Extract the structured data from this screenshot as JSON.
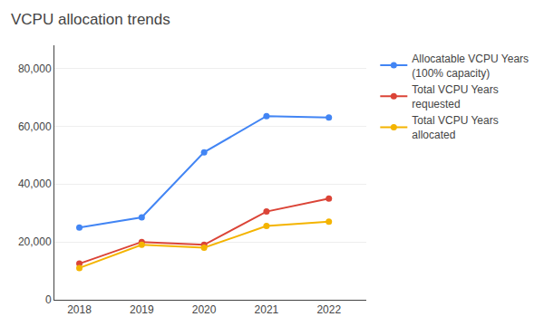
{
  "chart_data": {
    "type": "line",
    "title": "VCPU allocation trends",
    "x": [
      2018,
      2019,
      2020,
      2021,
      2022
    ],
    "series": [
      {
        "name": "Allocatable VCPU Years\n(100% capacity)",
        "color": "#4285F4",
        "values": [
          25000,
          28500,
          51000,
          63500,
          63000
        ]
      },
      {
        "name": "Total VCPU Years\nrequested",
        "color": "#DB4437",
        "values": [
          12500,
          20000,
          19000,
          30500,
          35000
        ]
      },
      {
        "name": "Total VCPU Years\nallocated",
        "color": "#F4B400",
        "values": [
          11000,
          19000,
          18000,
          25500,
          27000
        ]
      }
    ],
    "xlim": [
      2017.6,
      2022.6
    ],
    "xticks": [
      2018,
      2019,
      2020,
      2021,
      2022
    ],
    "ylim": [
      0,
      88000
    ],
    "yticks": [
      0,
      {
        "value": 20000,
        "label": "20,000"
      },
      {
        "value": 40000,
        "label": "40,000"
      },
      {
        "value": 60000,
        "label": "60,000"
      },
      {
        "value": 80000,
        "label": "80,000"
      }
    ],
    "grid": true,
    "legend": "right",
    "marker": "circle"
  }
}
